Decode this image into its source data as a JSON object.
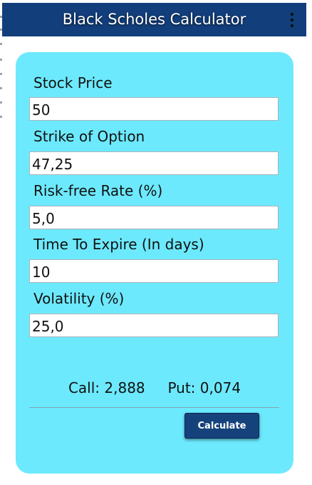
{
  "app": {
    "title": "Black Scholes Calculator",
    "menu_icon": "more-vertical-icon"
  },
  "form": {
    "stock_price": {
      "label": "Stock Price",
      "value": "50"
    },
    "strike": {
      "label": "Strike of Option",
      "value": "47,25"
    },
    "risk_free_rate": {
      "label": "Risk-free Rate (%)",
      "value": "5,0"
    },
    "time_to_expire": {
      "label": "Time To Expire (In days)",
      "value": "10"
    },
    "volatility": {
      "label": "Volatility (%)",
      "value": "25,0"
    }
  },
  "results": {
    "call_label": "Call:",
    "call_value": "2,888",
    "put_label": "Put:",
    "put_value": "0,074"
  },
  "actions": {
    "calculate_label": "Calculate"
  },
  "colors": {
    "app_bar": "#123f7c",
    "card": "#6de9fd",
    "button": "#16427c"
  }
}
